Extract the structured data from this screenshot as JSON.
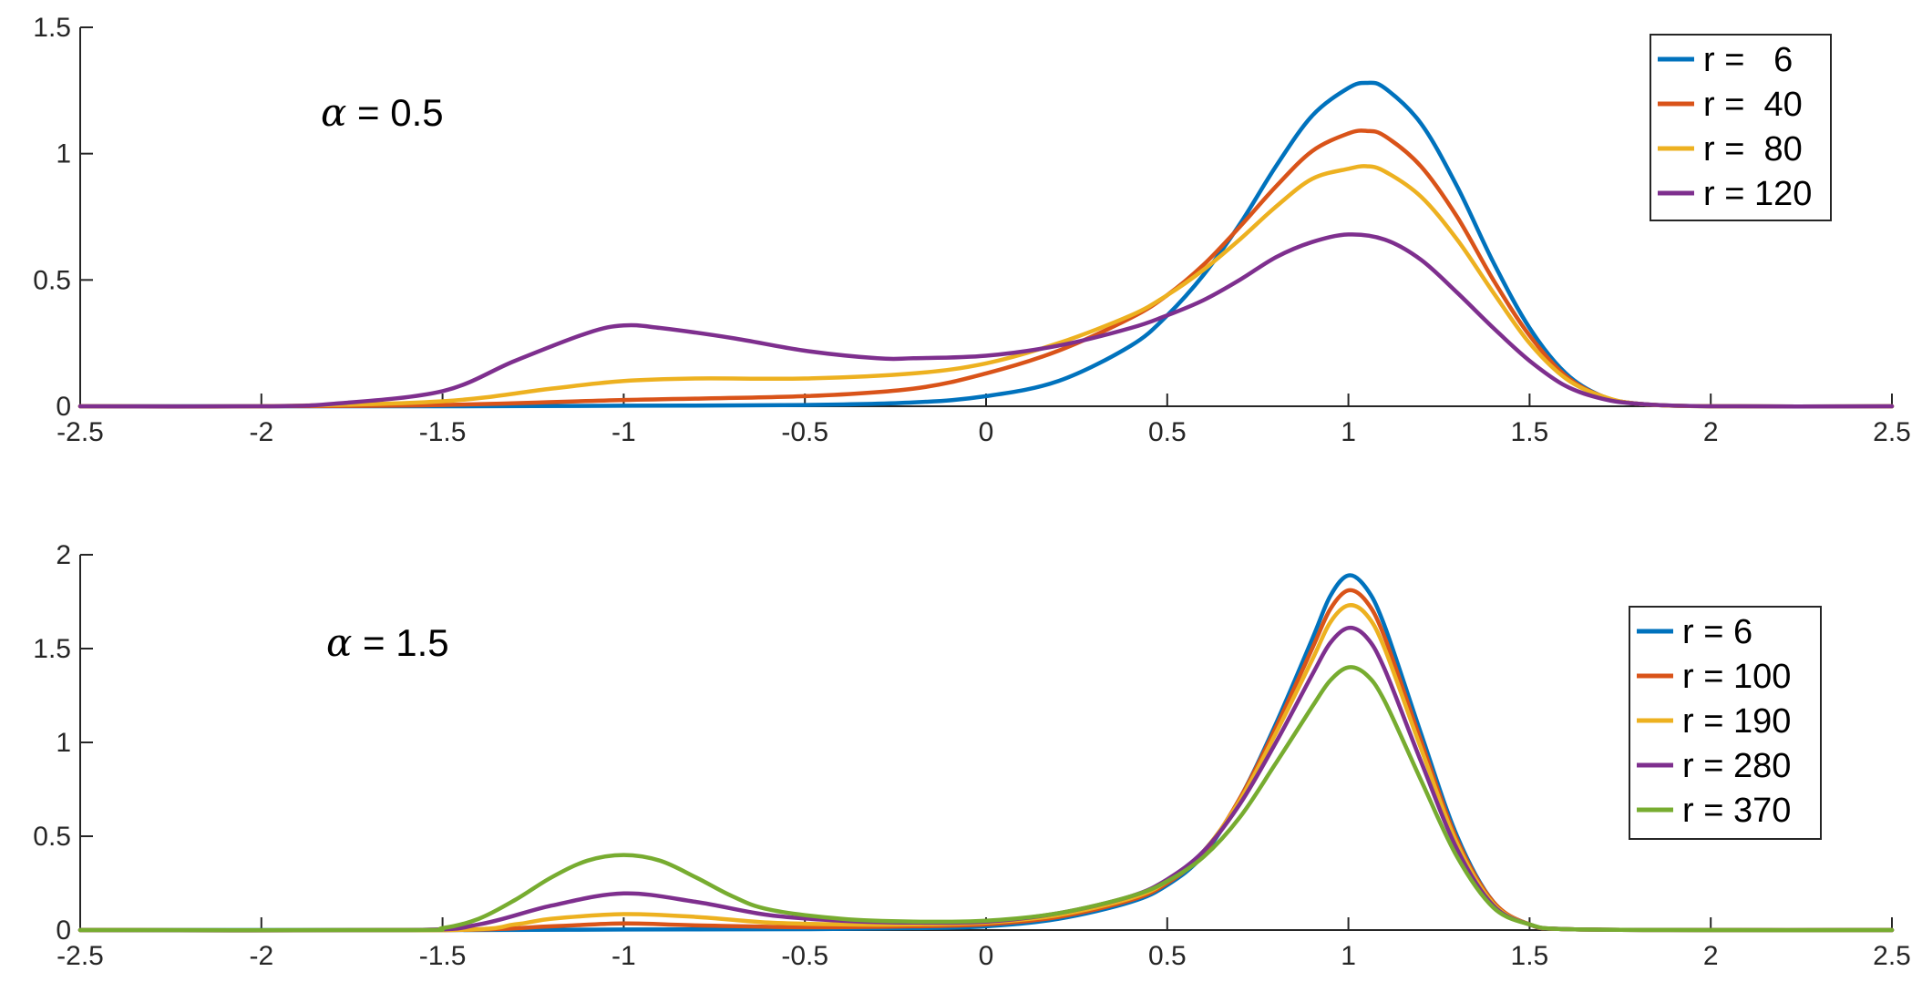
{
  "chart_data": [
    {
      "type": "line",
      "xlim": [
        -2.5,
        2.5
      ],
      "ylim": [
        0,
        1.5
      ],
      "xticks": [
        "-2.5",
        "-2",
        "-1.5",
        "-1",
        "-0.5",
        "0",
        "0.5",
        "1",
        "1.5",
        "2",
        "2.5"
      ],
      "yticks": [
        "0",
        "0.5",
        "1",
        "1.5"
      ],
      "annotation": {
        "symbol": "α",
        "text": " = 0.5"
      },
      "legend_position": "top-right",
      "grid": false,
      "series": [
        {
          "name": "r =   6",
          "color": "#0072BD",
          "x": [
            -2.5,
            -2.0,
            -1.5,
            -1.0,
            -0.5,
            -0.2,
            0.0,
            0.2,
            0.4,
            0.5,
            0.6,
            0.7,
            0.8,
            0.9,
            1.0,
            1.05,
            1.1,
            1.2,
            1.3,
            1.4,
            1.5,
            1.6,
            1.7,
            1.8,
            2.0,
            2.5
          ],
          "y": [
            0,
            0,
            0,
            0.002,
            0.005,
            0.015,
            0.04,
            0.1,
            0.24,
            0.36,
            0.52,
            0.72,
            0.95,
            1.15,
            1.26,
            1.28,
            1.26,
            1.12,
            0.87,
            0.57,
            0.31,
            0.13,
            0.04,
            0.01,
            0,
            0
          ]
        },
        {
          "name": "r =  40",
          "color": "#D95319",
          "x": [
            -2.5,
            -2.0,
            -1.5,
            -1.0,
            -0.5,
            -0.2,
            0.0,
            0.2,
            0.4,
            0.5,
            0.6,
            0.7,
            0.8,
            0.9,
            1.0,
            1.05,
            1.1,
            1.2,
            1.3,
            1.4,
            1.5,
            1.6,
            1.7,
            1.8,
            2.0,
            2.5
          ],
          "y": [
            0,
            0,
            0.005,
            0.025,
            0.04,
            0.07,
            0.13,
            0.22,
            0.35,
            0.44,
            0.56,
            0.71,
            0.87,
            1.01,
            1.08,
            1.09,
            1.07,
            0.95,
            0.75,
            0.5,
            0.28,
            0.12,
            0.04,
            0.01,
            0,
            0
          ]
        },
        {
          "name": "r =  80",
          "color": "#EDB120",
          "x": [
            -2.5,
            -2.0,
            -1.5,
            -1.2,
            -1.0,
            -0.8,
            -0.5,
            -0.2,
            0.0,
            0.2,
            0.4,
            0.5,
            0.6,
            0.7,
            0.8,
            0.9,
            1.0,
            1.05,
            1.1,
            1.2,
            1.3,
            1.4,
            1.5,
            1.6,
            1.7,
            1.8,
            2.0,
            2.5
          ],
          "y": [
            0,
            0,
            0.02,
            0.07,
            0.1,
            0.11,
            0.11,
            0.13,
            0.17,
            0.25,
            0.36,
            0.44,
            0.54,
            0.66,
            0.79,
            0.9,
            0.94,
            0.95,
            0.93,
            0.83,
            0.66,
            0.45,
            0.25,
            0.11,
            0.04,
            0.01,
            0,
            0
          ]
        },
        {
          "name": "r = 120",
          "color": "#7E2F8E",
          "x": [
            -2.5,
            -2.0,
            -1.8,
            -1.5,
            -1.3,
            -1.1,
            -1.0,
            -0.9,
            -0.7,
            -0.5,
            -0.3,
            -0.2,
            0.0,
            0.2,
            0.4,
            0.5,
            0.6,
            0.7,
            0.8,
            0.9,
            1.0,
            1.1,
            1.2,
            1.3,
            1.4,
            1.5,
            1.6,
            1.7,
            1.8,
            2.0,
            2.5
          ],
          "y": [
            0,
            0,
            0.01,
            0.06,
            0.18,
            0.29,
            0.32,
            0.31,
            0.27,
            0.22,
            0.19,
            0.19,
            0.2,
            0.24,
            0.31,
            0.36,
            0.42,
            0.5,
            0.59,
            0.65,
            0.68,
            0.66,
            0.58,
            0.45,
            0.31,
            0.18,
            0.08,
            0.03,
            0.01,
            0,
            0
          ]
        }
      ]
    },
    {
      "type": "line",
      "xlim": [
        -2.5,
        2.5
      ],
      "ylim": [
        0,
        2
      ],
      "xticks": [
        "-2.5",
        "-2",
        "-1.5",
        "-1",
        "-0.5",
        "0",
        "0.5",
        "1",
        "1.5",
        "2",
        "2.5"
      ],
      "yticks": [
        "0",
        "0.5",
        "1",
        "1.5",
        "2"
      ],
      "annotation": {
        "symbol": "α",
        "text": " = 1.5"
      },
      "legend_position": "right",
      "grid": false,
      "series": [
        {
          "name": "r = 6",
          "color": "#0072BD",
          "x": [
            -2.5,
            -1.5,
            -1.0,
            -0.5,
            -0.2,
            0.0,
            0.2,
            0.4,
            0.5,
            0.6,
            0.7,
            0.8,
            0.9,
            0.95,
            1.0,
            1.05,
            1.1,
            1.2,
            1.3,
            1.4,
            1.5,
            1.6,
            2.0,
            2.5
          ],
          "y": [
            0,
            0,
            0.003,
            0.005,
            0.01,
            0.02,
            0.06,
            0.15,
            0.24,
            0.4,
            0.7,
            1.1,
            1.55,
            1.78,
            1.89,
            1.82,
            1.62,
            1.05,
            0.5,
            0.15,
            0.03,
            0.005,
            0,
            0
          ]
        },
        {
          "name": "r = 100",
          "color": "#D95319",
          "x": [
            -2.5,
            -1.5,
            -1.2,
            -1.0,
            -0.8,
            -0.5,
            -0.2,
            0.0,
            0.2,
            0.4,
            0.5,
            0.6,
            0.7,
            0.8,
            0.9,
            0.95,
            1.0,
            1.05,
            1.1,
            1.2,
            1.3,
            1.4,
            1.5,
            1.6,
            2.0,
            2.5
          ],
          "y": [
            0,
            0,
            0.02,
            0.035,
            0.025,
            0.015,
            0.02,
            0.03,
            0.07,
            0.16,
            0.25,
            0.41,
            0.7,
            1.08,
            1.5,
            1.71,
            1.81,
            1.75,
            1.56,
            1.01,
            0.48,
            0.15,
            0.03,
            0.005,
            0,
            0
          ]
        },
        {
          "name": "r = 190",
          "color": "#EDB120",
          "x": [
            -2.5,
            -1.5,
            -1.3,
            -1.2,
            -1.0,
            -0.8,
            -0.6,
            -0.4,
            -0.2,
            0.0,
            0.2,
            0.4,
            0.5,
            0.6,
            0.7,
            0.8,
            0.9,
            0.95,
            1.0,
            1.05,
            1.1,
            1.2,
            1.3,
            1.4,
            1.5,
            1.6,
            2.0,
            2.5
          ],
          "y": [
            0,
            0,
            0.03,
            0.06,
            0.085,
            0.07,
            0.04,
            0.03,
            0.03,
            0.04,
            0.08,
            0.17,
            0.26,
            0.42,
            0.69,
            1.05,
            1.44,
            1.64,
            1.73,
            1.68,
            1.5,
            0.97,
            0.46,
            0.14,
            0.03,
            0.005,
            0,
            0
          ]
        },
        {
          "name": "r = 280",
          "color": "#7E2F8E",
          "x": [
            -2.5,
            -1.6,
            -1.4,
            -1.2,
            -1.0,
            -0.8,
            -0.6,
            -0.4,
            -0.2,
            0.0,
            0.2,
            0.4,
            0.5,
            0.6,
            0.7,
            0.8,
            0.9,
            0.95,
            1.0,
            1.05,
            1.1,
            1.2,
            1.3,
            1.4,
            1.5,
            1.6,
            2.0,
            2.5
          ],
          "y": [
            0,
            0,
            0.03,
            0.13,
            0.195,
            0.15,
            0.08,
            0.05,
            0.04,
            0.045,
            0.09,
            0.18,
            0.27,
            0.42,
            0.67,
            1.0,
            1.36,
            1.53,
            1.61,
            1.56,
            1.39,
            0.9,
            0.43,
            0.13,
            0.03,
            0.005,
            0,
            0
          ]
        },
        {
          "name": "r = 370",
          "color": "#77AC30",
          "x": [
            -2.5,
            -1.6,
            -1.5,
            -1.4,
            -1.3,
            -1.2,
            -1.1,
            -1.0,
            -0.9,
            -0.8,
            -0.7,
            -0.6,
            -0.4,
            -0.2,
            0.0,
            0.2,
            0.4,
            0.5,
            0.6,
            0.7,
            0.8,
            0.9,
            0.95,
            1.0,
            1.05,
            1.1,
            1.2,
            1.3,
            1.4,
            1.5,
            1.6,
            2.0,
            2.5
          ],
          "y": [
            0,
            0,
            0.01,
            0.06,
            0.16,
            0.28,
            0.37,
            0.4,
            0.37,
            0.28,
            0.18,
            0.11,
            0.06,
            0.045,
            0.05,
            0.09,
            0.18,
            0.26,
            0.39,
            0.6,
            0.89,
            1.19,
            1.33,
            1.4,
            1.36,
            1.22,
            0.8,
            0.39,
            0.12,
            0.03,
            0.005,
            0,
            0
          ]
        }
      ]
    }
  ]
}
